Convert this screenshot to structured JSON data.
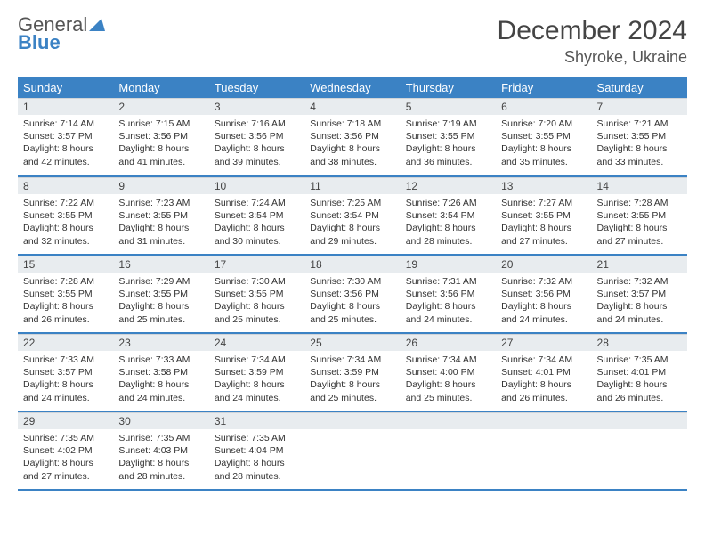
{
  "logo": {
    "line1": "General",
    "line2": "Blue"
  },
  "title": "December 2024",
  "location": "Shyroke, Ukraine",
  "colors": {
    "accent": "#3b82c4",
    "header_bg": "#3b82c4",
    "daybar": "#e8ecef"
  },
  "weekdays": [
    "Sunday",
    "Monday",
    "Tuesday",
    "Wednesday",
    "Thursday",
    "Friday",
    "Saturday"
  ],
  "weeks": [
    [
      {
        "n": "1",
        "sr": "7:14 AM",
        "ss": "3:57 PM",
        "dl": "8 hours and 42 minutes."
      },
      {
        "n": "2",
        "sr": "7:15 AM",
        "ss": "3:56 PM",
        "dl": "8 hours and 41 minutes."
      },
      {
        "n": "3",
        "sr": "7:16 AM",
        "ss": "3:56 PM",
        "dl": "8 hours and 39 minutes."
      },
      {
        "n": "4",
        "sr": "7:18 AM",
        "ss": "3:56 PM",
        "dl": "8 hours and 38 minutes."
      },
      {
        "n": "5",
        "sr": "7:19 AM",
        "ss": "3:55 PM",
        "dl": "8 hours and 36 minutes."
      },
      {
        "n": "6",
        "sr": "7:20 AM",
        "ss": "3:55 PM",
        "dl": "8 hours and 35 minutes."
      },
      {
        "n": "7",
        "sr": "7:21 AM",
        "ss": "3:55 PM",
        "dl": "8 hours and 33 minutes."
      }
    ],
    [
      {
        "n": "8",
        "sr": "7:22 AM",
        "ss": "3:55 PM",
        "dl": "8 hours and 32 minutes."
      },
      {
        "n": "9",
        "sr": "7:23 AM",
        "ss": "3:55 PM",
        "dl": "8 hours and 31 minutes."
      },
      {
        "n": "10",
        "sr": "7:24 AM",
        "ss": "3:54 PM",
        "dl": "8 hours and 30 minutes."
      },
      {
        "n": "11",
        "sr": "7:25 AM",
        "ss": "3:54 PM",
        "dl": "8 hours and 29 minutes."
      },
      {
        "n": "12",
        "sr": "7:26 AM",
        "ss": "3:54 PM",
        "dl": "8 hours and 28 minutes."
      },
      {
        "n": "13",
        "sr": "7:27 AM",
        "ss": "3:55 PM",
        "dl": "8 hours and 27 minutes."
      },
      {
        "n": "14",
        "sr": "7:28 AM",
        "ss": "3:55 PM",
        "dl": "8 hours and 27 minutes."
      }
    ],
    [
      {
        "n": "15",
        "sr": "7:28 AM",
        "ss": "3:55 PM",
        "dl": "8 hours and 26 minutes."
      },
      {
        "n": "16",
        "sr": "7:29 AM",
        "ss": "3:55 PM",
        "dl": "8 hours and 25 minutes."
      },
      {
        "n": "17",
        "sr": "7:30 AM",
        "ss": "3:55 PM",
        "dl": "8 hours and 25 minutes."
      },
      {
        "n": "18",
        "sr": "7:30 AM",
        "ss": "3:56 PM",
        "dl": "8 hours and 25 minutes."
      },
      {
        "n": "19",
        "sr": "7:31 AM",
        "ss": "3:56 PM",
        "dl": "8 hours and 24 minutes."
      },
      {
        "n": "20",
        "sr": "7:32 AM",
        "ss": "3:56 PM",
        "dl": "8 hours and 24 minutes."
      },
      {
        "n": "21",
        "sr": "7:32 AM",
        "ss": "3:57 PM",
        "dl": "8 hours and 24 minutes."
      }
    ],
    [
      {
        "n": "22",
        "sr": "7:33 AM",
        "ss": "3:57 PM",
        "dl": "8 hours and 24 minutes."
      },
      {
        "n": "23",
        "sr": "7:33 AM",
        "ss": "3:58 PM",
        "dl": "8 hours and 24 minutes."
      },
      {
        "n": "24",
        "sr": "7:34 AM",
        "ss": "3:59 PM",
        "dl": "8 hours and 24 minutes."
      },
      {
        "n": "25",
        "sr": "7:34 AM",
        "ss": "3:59 PM",
        "dl": "8 hours and 25 minutes."
      },
      {
        "n": "26",
        "sr": "7:34 AM",
        "ss": "4:00 PM",
        "dl": "8 hours and 25 minutes."
      },
      {
        "n": "27",
        "sr": "7:34 AM",
        "ss": "4:01 PM",
        "dl": "8 hours and 26 minutes."
      },
      {
        "n": "28",
        "sr": "7:35 AM",
        "ss": "4:01 PM",
        "dl": "8 hours and 26 minutes."
      }
    ],
    [
      {
        "n": "29",
        "sr": "7:35 AM",
        "ss": "4:02 PM",
        "dl": "8 hours and 27 minutes."
      },
      {
        "n": "30",
        "sr": "7:35 AM",
        "ss": "4:03 PM",
        "dl": "8 hours and 28 minutes."
      },
      {
        "n": "31",
        "sr": "7:35 AM",
        "ss": "4:04 PM",
        "dl": "8 hours and 28 minutes."
      },
      {
        "empty": true
      },
      {
        "empty": true
      },
      {
        "empty": true
      },
      {
        "empty": true
      }
    ]
  ],
  "labels": {
    "sunrise": "Sunrise:",
    "sunset": "Sunset:",
    "daylight": "Daylight:"
  }
}
